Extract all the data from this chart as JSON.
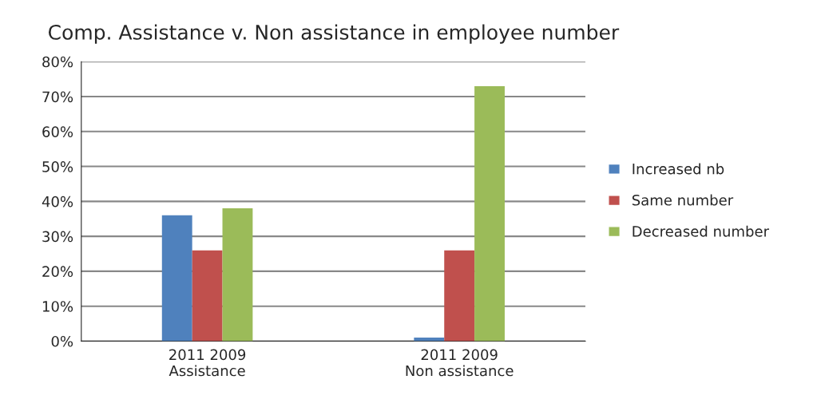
{
  "chart_data": {
    "type": "bar",
    "title": "Comp. Assistance v. Non assistance in employee number",
    "categories": [
      "2011 2009\nAssistance",
      "2011 2009\nNon assistance"
    ],
    "series": [
      {
        "name": "Increased nb",
        "color": "#4f81bd",
        "values": [
          36,
          1
        ]
      },
      {
        "name": "Same number",
        "color": "#c0504d",
        "values": [
          26,
          26
        ]
      },
      {
        "name": "Decreased number",
        "color": "#9bbb59",
        "values": [
          38,
          73
        ]
      }
    ],
    "ylim": [
      0,
      80
    ],
    "yticks": [
      {
        "value": 0,
        "label": "0%"
      },
      {
        "value": 10,
        "label": "10%"
      },
      {
        "value": 20,
        "label": "20%"
      },
      {
        "value": 30,
        "label": "30%"
      },
      {
        "value": 40,
        "label": "40%"
      },
      {
        "value": 50,
        "label": "50%"
      },
      {
        "value": 60,
        "label": "60%"
      },
      {
        "value": 70,
        "label": "70%"
      },
      {
        "value": 80,
        "label": "80%"
      }
    ],
    "grid": "y",
    "legend": "right"
  }
}
